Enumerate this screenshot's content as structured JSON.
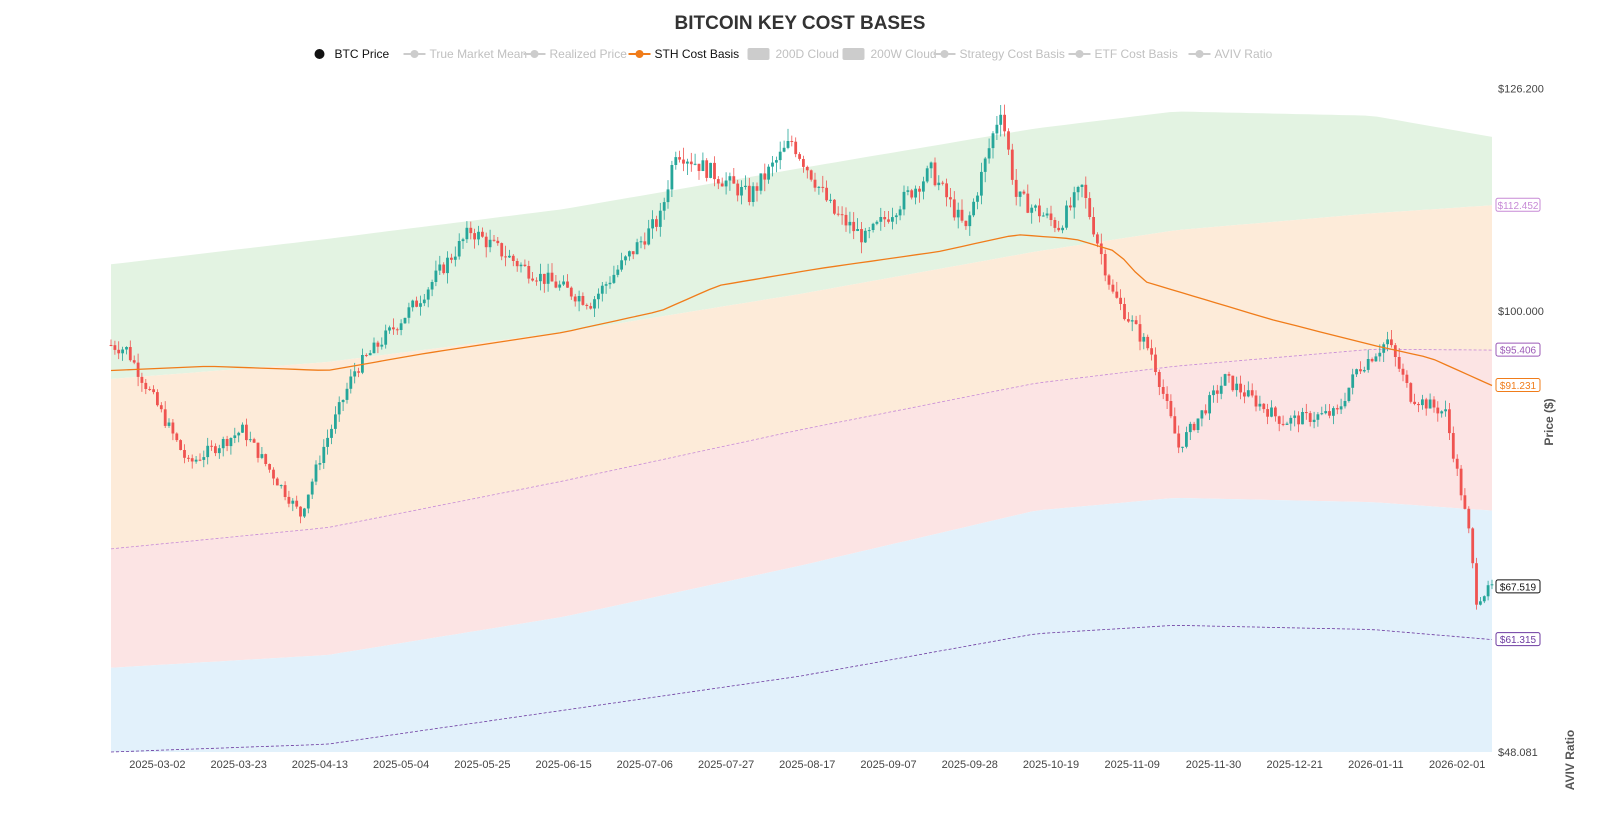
{
  "chart_data": {
    "type": "candlestick",
    "title": "BITCOIN KEY COST BASES",
    "ylabel": "Price ($)",
    "y2label": "AVIV Ratio",
    "ylim": [
      48081,
      130500
    ],
    "y_tick_labels": [
      "$126.200",
      "$100.000",
      "$48.081"
    ],
    "y_tick_values": [
      126200,
      100000,
      48081
    ],
    "x_tick_labels": [
      "2025-03-02",
      "2025-03-23",
      "2025-04-13",
      "2025-05-04",
      "2025-05-25",
      "2025-06-15",
      "2025-07-06",
      "2025-07-27",
      "2025-08-17",
      "2025-09-07",
      "2025-09-28",
      "2025-10-19",
      "2025-11-09",
      "2025-11-30",
      "2025-12-21",
      "2026-01-11",
      "2026-02-01"
    ],
    "x_start": "2025-02-18",
    "x_end": "2026-02-10",
    "legend": [
      {
        "label": "BTC Price",
        "active": true,
        "color": "#111111",
        "kind": "dot"
      },
      {
        "label": "True Market Mean",
        "active": false,
        "color": "#cccccc",
        "kind": "line"
      },
      {
        "label": "Realized Price",
        "active": false,
        "color": "#cccccc",
        "kind": "line"
      },
      {
        "label": "STH Cost Basis",
        "active": true,
        "color": "#f07c1a",
        "kind": "line"
      },
      {
        "label": "200D Cloud",
        "active": false,
        "color": "#cccccc",
        "kind": "box"
      },
      {
        "label": "200W Cloud",
        "active": false,
        "color": "#cccccc",
        "kind": "box"
      },
      {
        "label": "Strategy Cost Basis",
        "active": false,
        "color": "#cccccc",
        "kind": "line"
      },
      {
        "label": "ETF Cost Basis",
        "active": false,
        "color": "#cccccc",
        "kind": "line"
      },
      {
        "label": "AVIV Ratio",
        "active": false,
        "color": "#cccccc",
        "kind": "line"
      }
    ],
    "badges": [
      {
        "label": "$112.452",
        "value": 112452,
        "color": "#c78ad6"
      },
      {
        "label": "$95.406",
        "value": 95406,
        "color": "#9b59b6"
      },
      {
        "label": "$91.231",
        "value": 91231,
        "color": "#f07c1a"
      },
      {
        "label": "$67.519",
        "value": 67519,
        "color": "#111111"
      },
      {
        "label": "$61.315",
        "value": 61315,
        "color": "#6c3aa0"
      }
    ],
    "bands": {
      "x": [
        "2025-02-18",
        "2025-04-15",
        "2025-06-15",
        "2025-08-15",
        "2025-10-15",
        "2025-11-20",
        "2026-01-10",
        "2026-02-10"
      ],
      "green_top": [
        105500,
        108500,
        112000,
        116800,
        121500,
        123500,
        123000,
        120500
      ],
      "upper_top": [
        92000,
        94000,
        97500,
        102000,
        107000,
        109500,
        111500,
        112452
      ],
      "pink_top": [
        72000,
        74500,
        80000,
        86000,
        91500,
        93500,
        95500,
        95406
      ],
      "blue_top": [
        58000,
        59500,
        64000,
        70000,
        76500,
        78000,
        77500,
        76500
      ],
      "lower_line": [
        48081,
        49000,
        53000,
        57000,
        62000,
        63000,
        62500,
        61315
      ],
      "colors": {
        "green": "#e3f3e2",
        "orange": "#fdebd9",
        "pink": "#fce4e4",
        "blue": "#e2f1fb"
      }
    },
    "sth_cost_basis": {
      "x": [
        "2025-02-18",
        "2025-03-15",
        "2025-04-15",
        "2025-05-10",
        "2025-06-15",
        "2025-07-10",
        "2025-07-25",
        "2025-08-20",
        "2025-09-20",
        "2025-10-10",
        "2025-10-25",
        "2025-11-05",
        "2025-11-12",
        "2025-12-15",
        "2026-01-10",
        "2026-01-25",
        "2026-02-10"
      ],
      "y": [
        93000,
        93500,
        93000,
        95000,
        97500,
        100000,
        103000,
        105000,
        107000,
        109000,
        108500,
        107000,
        103500,
        99000,
        96000,
        94500,
        91231
      ]
    },
    "btc_anchors": {
      "x": [
        "2025-02-18",
        "2025-02-22",
        "2025-03-03",
        "2025-03-10",
        "2025-03-24",
        "2025-04-08",
        "2025-04-14",
        "2025-04-22",
        "2025-05-08",
        "2025-05-22",
        "2025-06-05",
        "2025-06-22",
        "2025-07-10",
        "2025-07-14",
        "2025-08-02",
        "2025-08-13",
        "2025-08-24",
        "2025-09-01",
        "2025-09-18",
        "2025-09-27",
        "2025-10-06",
        "2025-10-10",
        "2025-10-21",
        "2025-10-27",
        "2025-11-04",
        "2025-11-14",
        "2025-11-21",
        "2025-12-03",
        "2025-12-18",
        "2026-01-01",
        "2026-01-06",
        "2026-01-14",
        "2026-01-20",
        "2026-01-29",
        "2026-02-04",
        "2026-02-06",
        "2026-02-10"
      ],
      "y": [
        96000,
        95500,
        88000,
        82000,
        86000,
        76000,
        84000,
        93000,
        101000,
        109500,
        105000,
        101000,
        111000,
        119000,
        113500,
        120000,
        111500,
        108500,
        116500,
        109500,
        124000,
        113500,
        110000,
        114500,
        102000,
        95000,
        84000,
        92000,
        87000,
        88000,
        93000,
        96500,
        90000,
        88000,
        74000,
        66000,
        67519
      ]
    }
  }
}
